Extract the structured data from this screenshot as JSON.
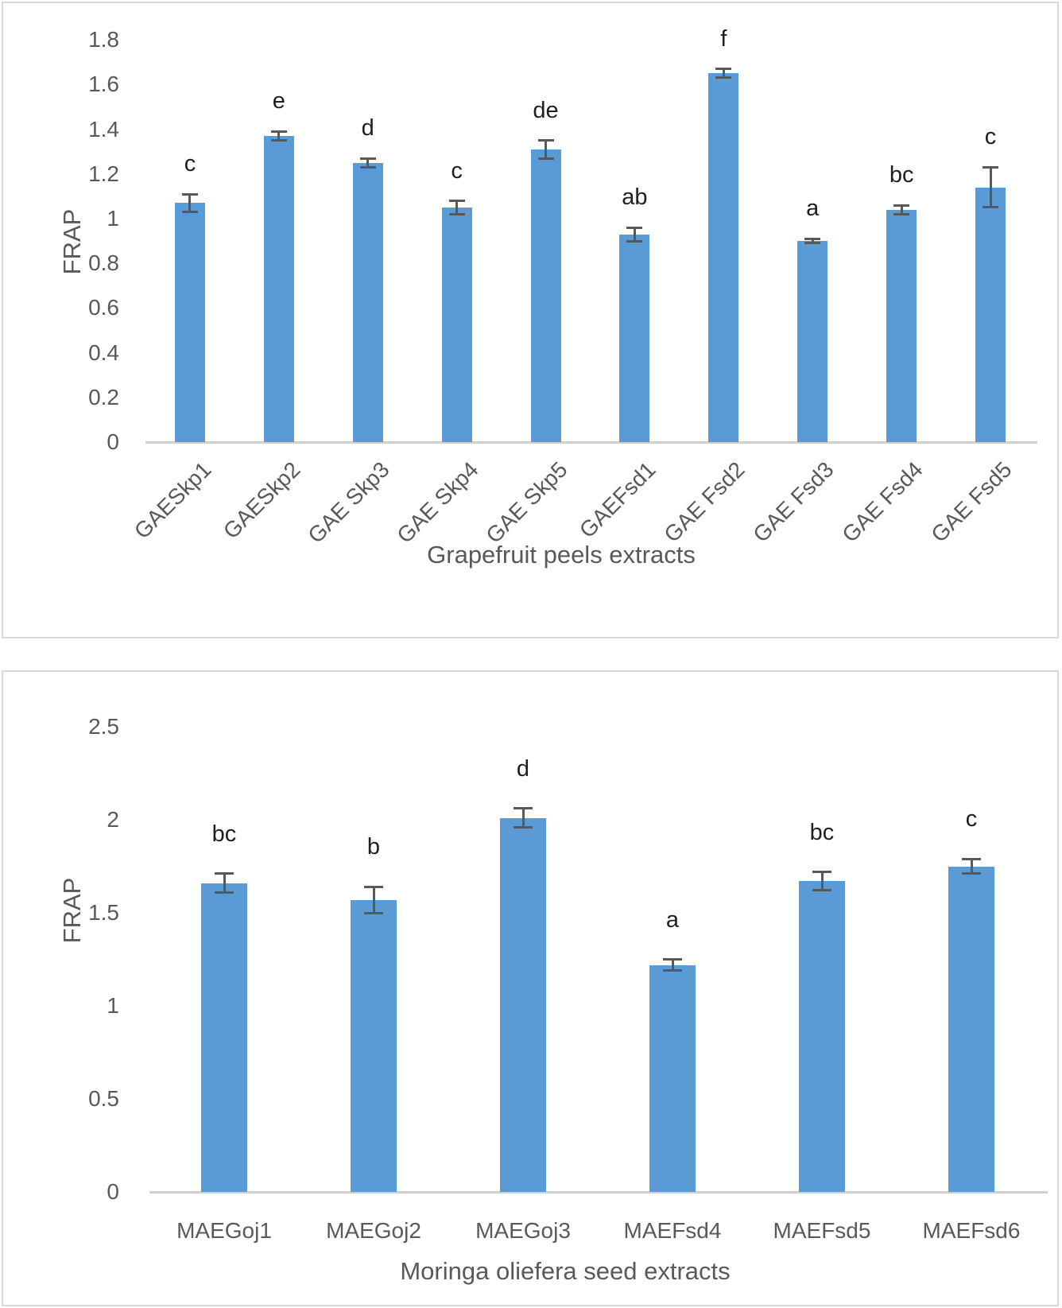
{
  "figure": {
    "background_color": "#ffffff",
    "panel_border_color": "#d9d9d9",
    "bar_color": "#5B9BD5",
    "error_bar_color": "#595959",
    "axis_line_color": "#cfcfcf",
    "tick_text_color": "#595959",
    "letter_text_color": "#1f1f1f"
  },
  "chart_data": [
    {
      "type": "bar",
      "panel": "top",
      "ylabel": "FRAP",
      "xlabel": "Grapefruit peels extracts",
      "categories": [
        "GAESkp1",
        "GAESkp2",
        "GAE Skp3",
        "GAE Skp4",
        "GAE Skp5",
        "GAEFsd1",
        "GAE Fsd2",
        "GAE Fsd3",
        "GAE Fsd4",
        "GAE Fsd5"
      ],
      "values": [
        1.07,
        1.37,
        1.25,
        1.05,
        1.31,
        0.93,
        1.65,
        0.9,
        1.04,
        1.14
      ],
      "error_bars": [
        0.04,
        0.02,
        0.02,
        0.03,
        0.04,
        0.03,
        0.02,
        0.01,
        0.02,
        0.09
      ],
      "sig_letters": [
        "c",
        "e",
        "d",
        "c",
        "de",
        "ab",
        "f",
        "a",
        "bc",
        "c"
      ],
      "ylim": [
        0,
        1.8
      ],
      "y_tick_labels": [
        "0",
        "0.2",
        "0.4",
        "0.6",
        "0.8",
        "1",
        "1.2",
        "1.4",
        "1.6",
        "1.8"
      ],
      "y_tick_values": [
        0,
        0.2,
        0.4,
        0.6,
        0.8,
        1,
        1.2,
        1.4,
        1.6,
        1.8
      ],
      "x_tick_rotation_deg": 45,
      "grid": false,
      "legend": null
    },
    {
      "type": "bar",
      "panel": "bottom",
      "ylabel": "FRAP",
      "xlabel": "Moringa oliefera seed extracts",
      "categories": [
        "MAEGoj1",
        "MAEGoj2",
        "MAEGoj3",
        "MAEFsd4",
        "MAEFsd5",
        "MAEFsd6"
      ],
      "values": [
        1.66,
        1.57,
        2.01,
        1.22,
        1.67,
        1.75
      ],
      "error_bars": [
        0.05,
        0.07,
        0.05,
        0.03,
        0.05,
        0.04
      ],
      "sig_letters": [
        "bc",
        "b",
        "d",
        "a",
        "bc",
        "c"
      ],
      "ylim": [
        0,
        2.5
      ],
      "y_tick_labels": [
        "0",
        "0.5",
        "1",
        "1.5",
        "2",
        "2.5"
      ],
      "y_tick_values": [
        0,
        0.5,
        1,
        1.5,
        2,
        2.5
      ],
      "x_tick_rotation_deg": 0,
      "grid": false,
      "legend": null
    }
  ]
}
